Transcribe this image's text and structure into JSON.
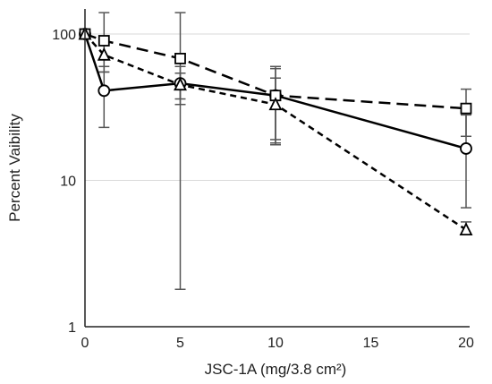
{
  "chart_data": {
    "type": "line",
    "title": "",
    "xlabel": "JSC-1A (mg/3.8 cm²)",
    "ylabel": "Percent Vaibility",
    "x_scale": "linear",
    "y_scale": "log",
    "xlim": [
      0,
      20
    ],
    "ylim": [
      1,
      100
    ],
    "x_ticks": [
      0,
      5,
      10,
      15,
      20
    ],
    "x_tick_labels": [
      "0",
      "5",
      "10",
      "15",
      "20"
    ],
    "y_ticks": [
      1,
      10,
      100
    ],
    "y_tick_labels": [
      "1",
      "10",
      "100"
    ],
    "grid": "horizontal",
    "x": [
      0,
      1,
      5,
      10,
      20
    ],
    "series": [
      {
        "marker": "circle",
        "line_style": "solid",
        "values": [
          100,
          41,
          46,
          38,
          16.5
        ],
        "err_low": [
          100,
          23,
          36,
          18,
          6.5
        ],
        "err_high": [
          100,
          60,
          54,
          58,
          28
        ]
      },
      {
        "marker": "square",
        "line_style": "dashed",
        "values": [
          100,
          90,
          68,
          38,
          31
        ],
        "err_low": [
          100,
          55,
          1.8,
          19,
          20
        ],
        "err_high": [
          100,
          140,
          140,
          60,
          42
        ]
      },
      {
        "marker": "triangle",
        "line_style": "dotted",
        "values": [
          100,
          72,
          45,
          33,
          4.6
        ],
        "err_low": [
          100,
          55,
          33,
          17.5,
          4.3
        ],
        "err_high": [
          100,
          90,
          60,
          50,
          5.2
        ]
      }
    ]
  }
}
